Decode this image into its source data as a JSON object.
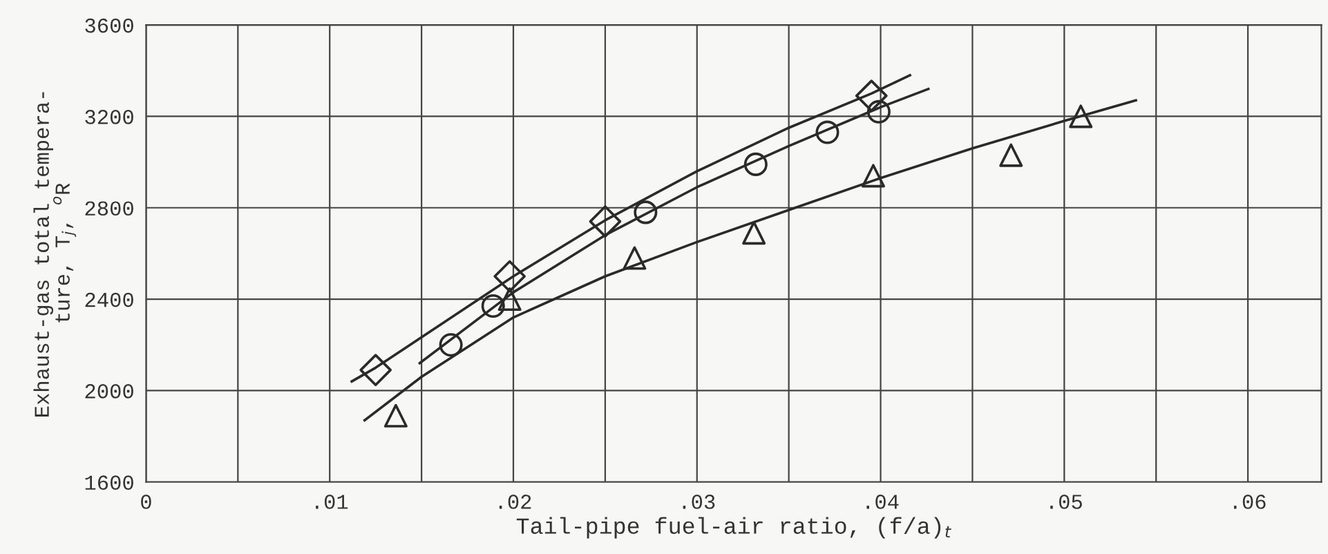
{
  "chart_data": {
    "type": "scatter",
    "xlabel": "Tail-pipe fuel-air ratio, (f/a)$_{t}$",
    "ylabel": "Exhaust-gas total tempera-\nture, T$_{j}$, $^{o}$R",
    "xlim": [
      0,
      0.064
    ],
    "ylim": [
      1600,
      3600
    ],
    "xticks": [
      0,
      {
        "value": 0.01,
        "label": ".01"
      },
      {
        "value": 0.02,
        "label": ".02"
      },
      {
        "value": 0.03,
        "label": ".03"
      },
      {
        "value": 0.04,
        "label": ".04"
      },
      {
        "value": 0.05,
        "label": ".05"
      },
      {
        "value": 0.06,
        "label": ".06"
      }
    ],
    "yticks": [
      1600,
      2000,
      2400,
      2800,
      3200,
      3600
    ],
    "grid": true,
    "legend": false,
    "series": [
      {
        "marker": "diamond",
        "color": "#2a2a2a",
        "x": [
          0.0125,
          0.0198,
          0.025,
          0.0395
        ],
        "values": [
          2090,
          2500,
          2740,
          3290
        ]
      },
      {
        "marker": "circle",
        "color": "#2a2a2a",
        "x": [
          0.0166,
          0.0189,
          0.0272,
          0.0332,
          0.0371,
          0.0399
        ],
        "values": [
          2200,
          2370,
          2780,
          2990,
          3130,
          3220
        ]
      },
      {
        "marker": "triangle",
        "color": "#2a2a2a",
        "x": [
          0.0136,
          0.0198,
          0.0266,
          0.0331,
          0.0396,
          0.0471,
          0.0509
        ],
        "values": [
          1890,
          2400,
          2580,
          2690,
          2940,
          3030,
          3200
        ]
      },
      {
        "type": "line",
        "marker": "none",
        "color": "#2a2a2a",
        "x": [
          0.0112,
          0.0125,
          0.02,
          0.025,
          0.03,
          0.035,
          0.0395,
          0.0416
        ],
        "values": [
          2040,
          2100,
          2500,
          2745,
          2960,
          3150,
          3300,
          3380
        ]
      },
      {
        "type": "line",
        "marker": "none",
        "color": "#2a2a2a",
        "x": [
          0.0149,
          0.02,
          0.025,
          0.03,
          0.035,
          0.04,
          0.0426
        ],
        "values": [
          2120,
          2430,
          2680,
          2890,
          3070,
          3240,
          3320
        ]
      },
      {
        "type": "line",
        "marker": "none",
        "color": "#2a2a2a",
        "x": [
          0.0119,
          0.015,
          0.02,
          0.025,
          0.03,
          0.035,
          0.04,
          0.045,
          0.05,
          0.0539
        ],
        "values": [
          1870,
          2060,
          2320,
          2500,
          2650,
          2790,
          2930,
          3060,
          3180,
          3270
        ]
      }
    ]
  }
}
